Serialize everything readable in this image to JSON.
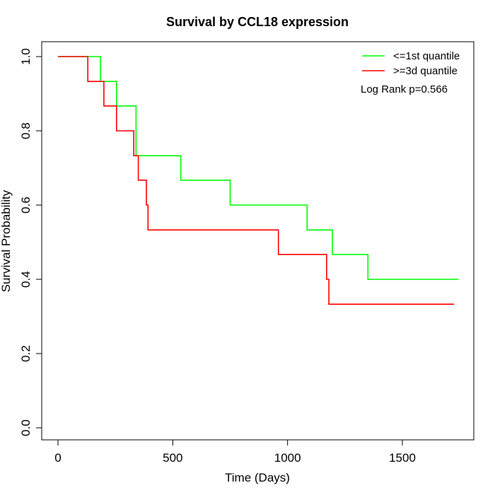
{
  "chart_data": {
    "type": "line",
    "step": true,
    "title": "Survival by CCL18 expression",
    "xlabel": "Time (Days)",
    "ylabel": "Survival Probability",
    "xlim": [
      0,
      1800
    ],
    "ylim": [
      0,
      1.0
    ],
    "xticks": [
      0,
      500,
      1000,
      1500
    ],
    "yticks": [
      0.0,
      0.2,
      0.4,
      0.6,
      0.8,
      1.0
    ],
    "xtick_labels": [
      "0",
      "500",
      "1000",
      "1500"
    ],
    "ytick_labels": [
      "0.0",
      "0.2",
      "0.4",
      "0.6",
      "0.8",
      "1.0"
    ],
    "grid": false,
    "legend_position": "top-right",
    "annotation": "Log Rank p=0.566",
    "series": [
      {
        "name": "<=1st quantile",
        "color": "#00ff00",
        "points": [
          [
            0,
            1.0
          ],
          [
            185,
            1.0
          ],
          [
            185,
            0.933
          ],
          [
            255,
            0.933
          ],
          [
            255,
            0.867
          ],
          [
            340,
            0.867
          ],
          [
            340,
            0.733
          ],
          [
            535,
            0.733
          ],
          [
            535,
            0.667
          ],
          [
            750,
            0.667
          ],
          [
            750,
            0.6
          ],
          [
            1085,
            0.6
          ],
          [
            1085,
            0.533
          ],
          [
            1195,
            0.533
          ],
          [
            1195,
            0.467
          ],
          [
            1350,
            0.467
          ],
          [
            1350,
            0.4
          ],
          [
            1745,
            0.4
          ]
        ]
      },
      {
        "name": ">=3d quantile",
        "color": "#ff0000",
        "points": [
          [
            0,
            1.0
          ],
          [
            130,
            1.0
          ],
          [
            130,
            0.933
          ],
          [
            200,
            0.933
          ],
          [
            200,
            0.867
          ],
          [
            255,
            0.867
          ],
          [
            255,
            0.8
          ],
          [
            330,
            0.8
          ],
          [
            330,
            0.733
          ],
          [
            350,
            0.733
          ],
          [
            350,
            0.667
          ],
          [
            385,
            0.667
          ],
          [
            385,
            0.6
          ],
          [
            392,
            0.6
          ],
          [
            392,
            0.533
          ],
          [
            960,
            0.533
          ],
          [
            960,
            0.467
          ],
          [
            1170,
            0.467
          ],
          [
            1170,
            0.4
          ],
          [
            1180,
            0.4
          ],
          [
            1180,
            0.333
          ],
          [
            1725,
            0.333
          ]
        ]
      }
    ]
  }
}
